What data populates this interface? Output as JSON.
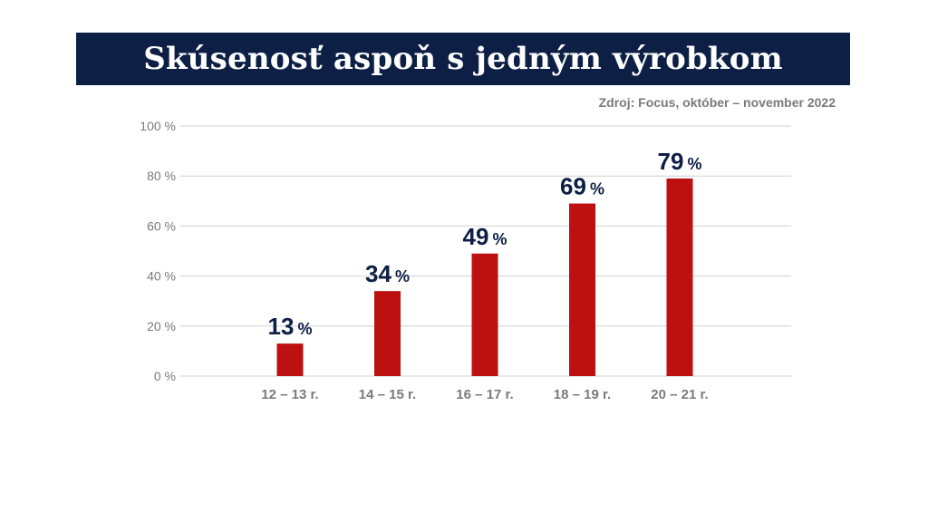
{
  "header": {
    "title": "Skúsenosť aspoň s jedným výrobkom"
  },
  "source": "Zdroj: Focus, október – november 2022",
  "colors": {
    "title_bg": "#0d1f45",
    "bar": "#bd1010",
    "label": "#0d1f45",
    "axis_text": "#7a7a7a",
    "grid": "#d0d0d0"
  },
  "chart_data": {
    "type": "bar",
    "title": "Skúsenosť aspoň s jedným výrobkom",
    "categories": [
      "12 – 13 r.",
      "14 – 15 r.",
      "16 – 17 r.",
      "18 – 19 r.",
      "20 – 21 r."
    ],
    "values": [
      13,
      34,
      49,
      69,
      79
    ],
    "data_labels": [
      "13",
      "34",
      "49",
      "69",
      "79"
    ],
    "data_label_unit": "%",
    "ylim": [
      0,
      100
    ],
    "yticks": [
      0,
      20,
      40,
      60,
      80,
      100
    ],
    "ytick_labels": [
      "0 %",
      "20 %",
      "40 %",
      "60 %",
      "80 %",
      "100 %"
    ],
    "xlabel": "",
    "ylabel": "",
    "grid": true,
    "legend": false
  }
}
